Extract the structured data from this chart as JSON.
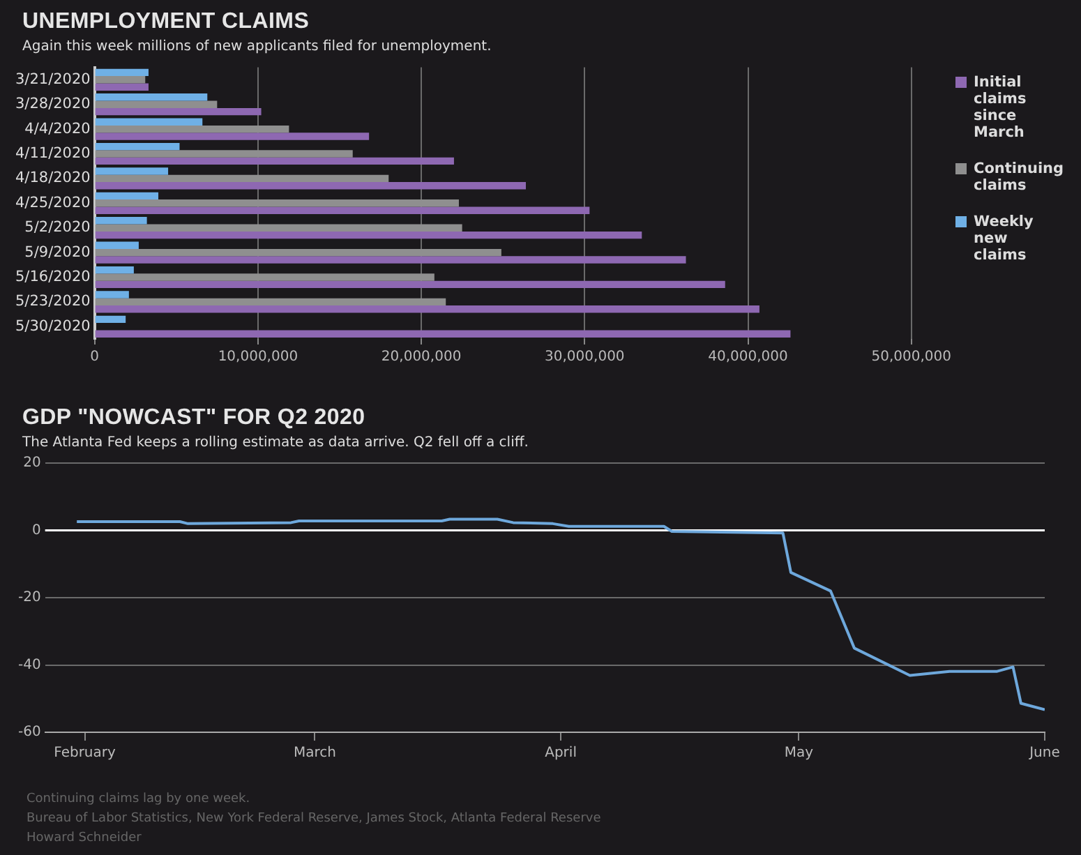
{
  "chart_data": [
    {
      "type": "bar",
      "orientation": "horizontal",
      "title": "UNEMPLOYMENT CLAIMS",
      "subtitle": "Again this week millions of new applicants filed for unemployment.",
      "categories": [
        "3/21/2020",
        "3/28/2020",
        "4/4/2020",
        "4/11/2020",
        "4/18/2020",
        "4/25/2020",
        "5/2/2020",
        "5/9/2020",
        "5/16/2020",
        "5/23/2020",
        "5/30/2020"
      ],
      "series": [
        {
          "name": "Initial claims since March",
          "color": "#8e68b2",
          "values": [
            3300000,
            10200000,
            16800000,
            22000000,
            26400000,
            30300000,
            33500000,
            36200000,
            38600000,
            40700000,
            42600000
          ]
        },
        {
          "name": "Continuing claims",
          "color": "#8f8f8f",
          "values": [
            3100000,
            7500000,
            11900000,
            15800000,
            18000000,
            22300000,
            22500000,
            24900000,
            20800000,
            21500000,
            null
          ]
        },
        {
          "name": "Weekly new claims",
          "color": "#6fb0e6",
          "values": [
            3300000,
            6900000,
            6600000,
            5200000,
            4500000,
            3900000,
            3200000,
            2700000,
            2400000,
            2100000,
            1900000
          ]
        }
      ],
      "xlim": [
        0,
        50000000
      ],
      "xticks": [
        0,
        {
          "value": 10000000,
          "label": "10,000,000"
        },
        {
          "value": 20000000,
          "label": "20,000,000"
        },
        {
          "value": 30000000,
          "label": "30,000,000"
        },
        {
          "value": 40000000,
          "label": "40,000,000"
        },
        {
          "value": 50000000,
          "label": "50,000,000"
        }
      ],
      "grid": "x",
      "legend": "right",
      "annotations": [
        "Continuing claims lag by one week."
      ]
    },
    {
      "type": "line",
      "title": "GDP \"NOWCAST\" FOR Q2 2020",
      "subtitle": "The Atlanta Fed keeps a rolling estimate as data arrive. Q2 fell off a cliff.",
      "x": [
        "2020-01-31",
        "2020-02-13",
        "2020-02-14",
        "2020-02-27",
        "2020-02-28",
        "2020-03-17",
        "2020-03-18",
        "2020-03-24",
        "2020-03-26",
        "2020-03-31",
        "2020-04-02",
        "2020-04-14",
        "2020-04-15",
        "2020-04-29",
        "2020-04-30",
        "2020-05-05",
        "2020-05-08",
        "2020-05-15",
        "2020-05-20",
        "2020-05-26",
        "2020-05-28",
        "2020-05-29",
        "2020-06-01"
      ],
      "values": [
        2.6,
        2.6,
        2.0,
        2.3,
        2.8,
        2.8,
        3.3,
        3.3,
        2.3,
        2.0,
        1.2,
        1.2,
        -0.3,
        -0.8,
        -12.5,
        -18,
        -35,
        -43.1,
        -41.9,
        -41.9,
        -40.6,
        -51.4,
        -53.3
      ],
      "color": "#6ea8dc",
      "marker": "none",
      "xlim": [
        "2020-01-27",
        "2020-06-01"
      ],
      "xticks": [
        {
          "value": "2020-02-01",
          "label": "February"
        },
        {
          "value": "2020-03-01",
          "label": "March"
        },
        {
          "value": "2020-04-01",
          "label": "April"
        },
        {
          "value": "2020-05-01",
          "label": "May"
        },
        {
          "value": "2020-06-01",
          "label": "June"
        }
      ],
      "ylim": [
        -60,
        20
      ],
      "yticks": [
        20,
        0,
        -20,
        -40,
        -60
      ],
      "grid": "y",
      "ref_lines": [
        {
          "axis": "y",
          "value": 0,
          "color": "#ffffff"
        }
      ],
      "annotations": [
        "Bureau of Labor Statistics, New York Federal Reserve, James Stock, Atlanta Federal Reserve",
        "Howard Schneider"
      ]
    }
  ]
}
